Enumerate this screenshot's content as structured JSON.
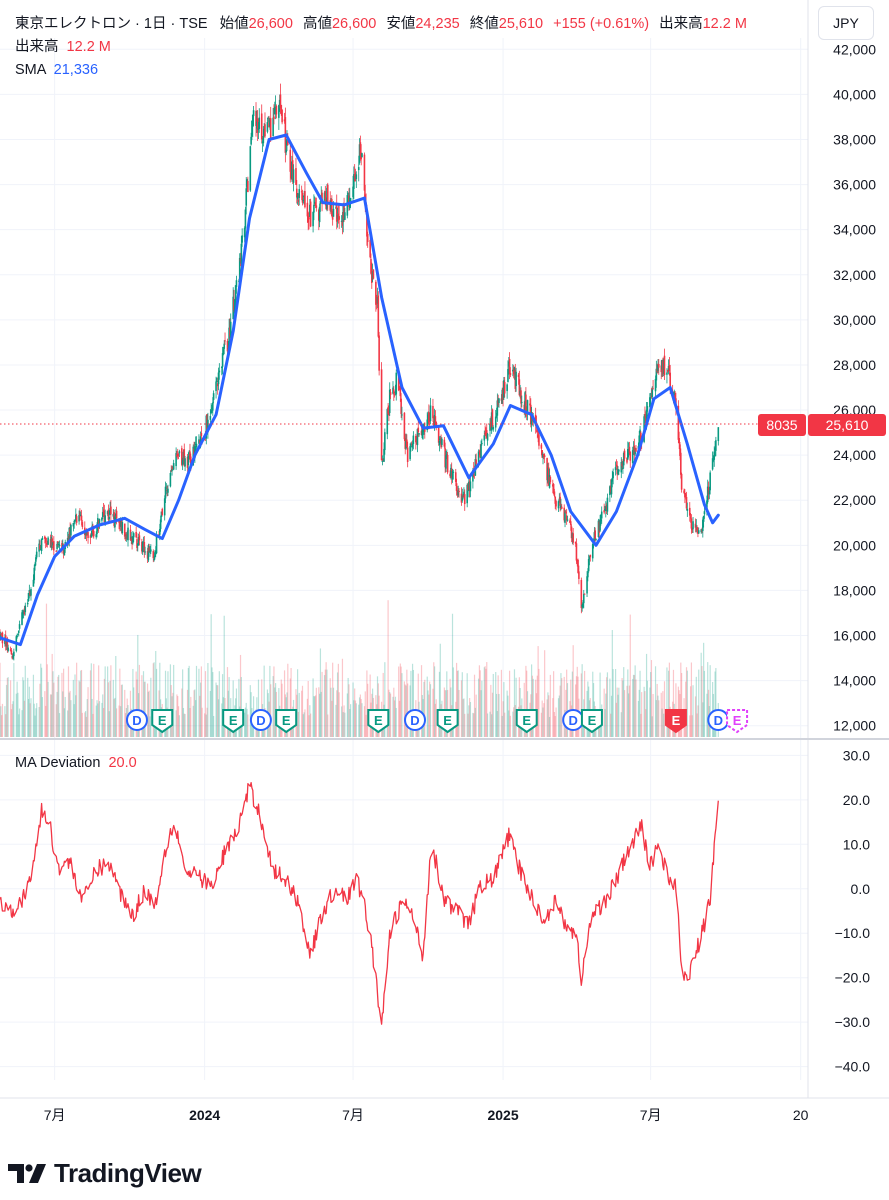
{
  "header": {
    "symbol_line": "東京エレクトロン · 1日 · TSE",
    "open_label": "始値",
    "open": "26,600",
    "high_label": "高値",
    "high": "26,600",
    "low_label": "安値",
    "low": "24,235",
    "close_label": "終値",
    "close": "25,610",
    "change": "+155 (+0.61%)",
    "volume_label": "出来高",
    "volume": "12.2 M",
    "volume_row_label": "出来高",
    "volume_row_value": "12.2 M",
    "sma_label": "SMA",
    "sma_value": "21,336",
    "currency_button": "JPY"
  },
  "price_badges": {
    "ticker": "8035",
    "last": "25,610"
  },
  "indicator": {
    "label": "MA Deviation",
    "value": "20.0"
  },
  "brand": {
    "name": "TradingView"
  },
  "colors": {
    "up": "#089981",
    "down": "#f23645",
    "sma": "#2962ff",
    "deviation": "#f23645"
  },
  "chart_data": [
    {
      "type": "candlestick",
      "y_ticks": [
        "42,000",
        "40,000",
        "38,000",
        "36,000",
        "34,000",
        "32,000",
        "30,000",
        "28,000",
        "26,000",
        "24,000",
        "22,000",
        "20,000",
        "18,000",
        "16,000",
        "14,000",
        "12,000"
      ],
      "ylim": [
        11500,
        42500
      ],
      "x_ticks": [
        "7月",
        "2024",
        "7月",
        "2025",
        "7月",
        "20"
      ],
      "x_tick_dates": [
        "2023-07-01",
        "2024-01-01",
        "2024-07-01",
        "2025-01-01",
        "2025-07-01",
        "2026-01-01"
      ],
      "x_range": [
        "2023-04-25",
        "2026-01-10"
      ],
      "close_path": [
        [
          "2023-04-25",
          16000
        ],
        [
          "2023-05-10",
          15200
        ],
        [
          "2023-05-20",
          16500
        ],
        [
          "2023-06-01",
          18000
        ],
        [
          "2023-06-12",
          20000
        ],
        [
          "2023-06-25",
          20300
        ],
        [
          "2023-07-10",
          19600
        ],
        [
          "2023-07-25",
          21300
        ],
        [
          "2023-08-15",
          20500
        ],
        [
          "2023-09-05",
          21500
        ],
        [
          "2023-09-20",
          20800
        ],
        [
          "2023-10-10",
          20200
        ],
        [
          "2023-10-30",
          19500
        ],
        [
          "2023-11-15",
          22500
        ],
        [
          "2023-11-30",
          24000
        ],
        [
          "2023-12-15",
          23800
        ],
        [
          "2023-12-28",
          24500
        ],
        [
          "2024-01-15",
          27000
        ],
        [
          "2024-02-01",
          29500
        ],
        [
          "2024-02-15",
          33000
        ],
        [
          "2024-03-01",
          39000
        ],
        [
          "2024-03-15",
          38000
        ],
        [
          "2024-04-01",
          39500
        ],
        [
          "2024-04-20",
          36000
        ],
        [
          "2024-05-10",
          34500
        ],
        [
          "2024-05-30",
          35500
        ],
        [
          "2024-06-15",
          34000
        ],
        [
          "2024-07-01",
          36000
        ],
        [
          "2024-07-10",
          37800
        ],
        [
          "2024-07-20",
          33000
        ],
        [
          "2024-07-31",
          30500
        ],
        [
          "2024-08-05",
          23500
        ],
        [
          "2024-08-15",
          26500
        ],
        [
          "2024-08-25",
          27500
        ],
        [
          "2024-09-05",
          24000
        ],
        [
          "2024-09-20",
          25000
        ],
        [
          "2024-10-05",
          26000
        ],
        [
          "2024-10-25",
          23500
        ],
        [
          "2024-11-15",
          22000
        ],
        [
          "2024-12-05",
          24500
        ],
        [
          "2024-12-25",
          26000
        ],
        [
          "2025-01-10",
          28000
        ],
        [
          "2025-01-20",
          27000
        ],
        [
          "2025-02-01",
          26000
        ],
        [
          "2025-02-15",
          24500
        ],
        [
          "2025-03-01",
          22500
        ],
        [
          "2025-03-15",
          21500
        ],
        [
          "2025-03-31",
          20000
        ],
        [
          "2025-04-07",
          17000
        ],
        [
          "2025-04-20",
          20000
        ],
        [
          "2025-05-05",
          21500
        ],
        [
          "2025-05-20",
          23500
        ],
        [
          "2025-06-05",
          24000
        ],
        [
          "2025-06-20",
          25000
        ],
        [
          "2025-07-05",
          27500
        ],
        [
          "2025-07-20",
          28000
        ],
        [
          "2025-08-01",
          26500
        ],
        [
          "2025-08-08",
          22500
        ],
        [
          "2025-08-20",
          21000
        ],
        [
          "2025-09-01",
          20400
        ],
        [
          "2025-09-10",
          22500
        ],
        [
          "2025-09-17",
          24500
        ],
        [
          "2025-09-22",
          25610
        ]
      ],
      "series": [
        {
          "name": "SMA",
          "points": [
            [
              "2023-04-25",
              15900
            ],
            [
              "2023-05-20",
              15600
            ],
            [
              "2023-06-10",
              17800
            ],
            [
              "2023-07-01",
              19500
            ],
            [
              "2023-07-25",
              20400
            ],
            [
              "2023-08-25",
              20900
            ],
            [
              "2023-09-25",
              21200
            ],
            [
              "2023-10-20",
              20700
            ],
            [
              "2023-11-10",
              20300
            ],
            [
              "2023-11-30",
              22000
            ],
            [
              "2023-12-20",
              24000
            ],
            [
              "2024-01-15",
              25800
            ],
            [
              "2024-02-05",
              29500
            ],
            [
              "2024-02-25",
              34500
            ],
            [
              "2024-03-20",
              38000
            ],
            [
              "2024-04-10",
              38200
            ],
            [
              "2024-05-05",
              36500
            ],
            [
              "2024-05-25",
              35200
            ],
            [
              "2024-06-20",
              35100
            ],
            [
              "2024-07-15",
              35400
            ],
            [
              "2024-08-05",
              31000
            ],
            [
              "2024-08-30",
              27000
            ],
            [
              "2024-09-25",
              25200
            ],
            [
              "2024-10-20",
              25300
            ],
            [
              "2024-11-20",
              23000
            ],
            [
              "2024-12-20",
              24500
            ],
            [
              "2025-01-10",
              26200
            ],
            [
              "2025-02-05",
              25800
            ],
            [
              "2025-03-01",
              24000
            ],
            [
              "2025-03-25",
              21500
            ],
            [
              "2025-04-25",
              20000
            ],
            [
              "2025-05-20",
              21500
            ],
            [
              "2025-06-15",
              24000
            ],
            [
              "2025-07-05",
              26500
            ],
            [
              "2025-07-25",
              27000
            ],
            [
              "2025-08-15",
              24500
            ],
            [
              "2025-09-05",
              21800
            ],
            [
              "2025-09-15",
              21000
            ],
            [
              "2025-09-22",
              21336
            ]
          ]
        }
      ],
      "events": [
        {
          "date": "2023-10-10",
          "kind": "D"
        },
        {
          "date": "2023-11-10",
          "kind": "E"
        },
        {
          "date": "2024-02-05",
          "kind": "E"
        },
        {
          "date": "2024-03-10",
          "kind": "D"
        },
        {
          "date": "2024-04-10",
          "kind": "E"
        },
        {
          "date": "2024-08-01",
          "kind": "E"
        },
        {
          "date": "2024-09-15",
          "kind": "D"
        },
        {
          "date": "2024-10-25",
          "kind": "E"
        },
        {
          "date": "2025-01-30",
          "kind": "E"
        },
        {
          "date": "2025-03-28",
          "kind": "D"
        },
        {
          "date": "2025-04-20",
          "kind": "E"
        },
        {
          "date": "2025-08-01",
          "kind": "E-red"
        },
        {
          "date": "2025-09-22",
          "kind": "D-purple"
        },
        {
          "date": "2025-10-15",
          "kind": "E-purple"
        }
      ]
    },
    {
      "type": "line",
      "name": "MA Deviation",
      "y_ticks": [
        "30.0",
        "20.0",
        "10.0",
        "0.0",
        "−10.0",
        "−20.0",
        "−30.0",
        "−40.0"
      ],
      "ylim": [
        -43,
        33
      ],
      "points": [
        [
          "2023-04-25",
          -3
        ],
        [
          "2023-05-10",
          -4.5
        ],
        [
          "2023-05-25",
          -2
        ],
        [
          "2023-06-05",
          5
        ],
        [
          "2023-06-15",
          18
        ],
        [
          "2023-06-25",
          14
        ],
        [
          "2023-07-05",
          5
        ],
        [
          "2023-07-20",
          6
        ],
        [
          "2023-08-05",
          -3
        ],
        [
          "2023-08-20",
          4
        ],
        [
          "2023-09-05",
          6
        ],
        [
          "2023-09-20",
          -1
        ],
        [
          "2023-10-05",
          -6
        ],
        [
          "2023-10-20",
          0
        ],
        [
          "2023-11-01",
          -4
        ],
        [
          "2023-11-15",
          10
        ],
        [
          "2023-11-25",
          15
        ],
        [
          "2023-12-10",
          3
        ],
        [
          "2023-12-25",
          3
        ],
        [
          "2024-01-10",
          0
        ],
        [
          "2024-01-25",
          8
        ],
        [
          "2024-02-10",
          13
        ],
        [
          "2024-02-25",
          23
        ],
        [
          "2024-03-10",
          16
        ],
        [
          "2024-03-25",
          4
        ],
        [
          "2024-04-10",
          2
        ],
        [
          "2024-04-25",
          -3
        ],
        [
          "2024-05-10",
          -15
        ],
        [
          "2024-05-25",
          -5
        ],
        [
          "2024-06-10",
          0
        ],
        [
          "2024-06-25",
          -2
        ],
        [
          "2024-07-05",
          2
        ],
        [
          "2024-07-15",
          -3
        ],
        [
          "2024-07-28",
          -18
        ],
        [
          "2024-08-05",
          -32
        ],
        [
          "2024-08-15",
          -10
        ],
        [
          "2024-08-30",
          -3
        ],
        [
          "2024-09-10",
          -5
        ],
        [
          "2024-09-25",
          -15
        ],
        [
          "2024-10-05",
          11
        ],
        [
          "2024-10-20",
          -2
        ],
        [
          "2024-11-05",
          -5
        ],
        [
          "2024-11-20",
          -8
        ],
        [
          "2024-12-05",
          1
        ],
        [
          "2024-12-20",
          2
        ],
        [
          "2025-01-08",
          12
        ],
        [
          "2025-01-20",
          5
        ],
        [
          "2025-02-05",
          -2
        ],
        [
          "2025-02-20",
          -7
        ],
        [
          "2025-03-05",
          -3
        ],
        [
          "2025-03-20",
          -8
        ],
        [
          "2025-04-01",
          -11
        ],
        [
          "2025-04-07",
          -20
        ],
        [
          "2025-04-20",
          -6
        ],
        [
          "2025-05-05",
          -3
        ],
        [
          "2025-05-20",
          2
        ],
        [
          "2025-06-05",
          9
        ],
        [
          "2025-06-20",
          14
        ],
        [
          "2025-06-30",
          5
        ],
        [
          "2025-07-10",
          10
        ],
        [
          "2025-07-20",
          4
        ],
        [
          "2025-08-01",
          0
        ],
        [
          "2025-08-08",
          -18
        ],
        [
          "2025-08-15",
          -20
        ],
        [
          "2025-08-25",
          -15
        ],
        [
          "2025-09-05",
          -8
        ],
        [
          "2025-09-12",
          -2
        ],
        [
          "2025-09-22",
          20
        ]
      ]
    }
  ]
}
